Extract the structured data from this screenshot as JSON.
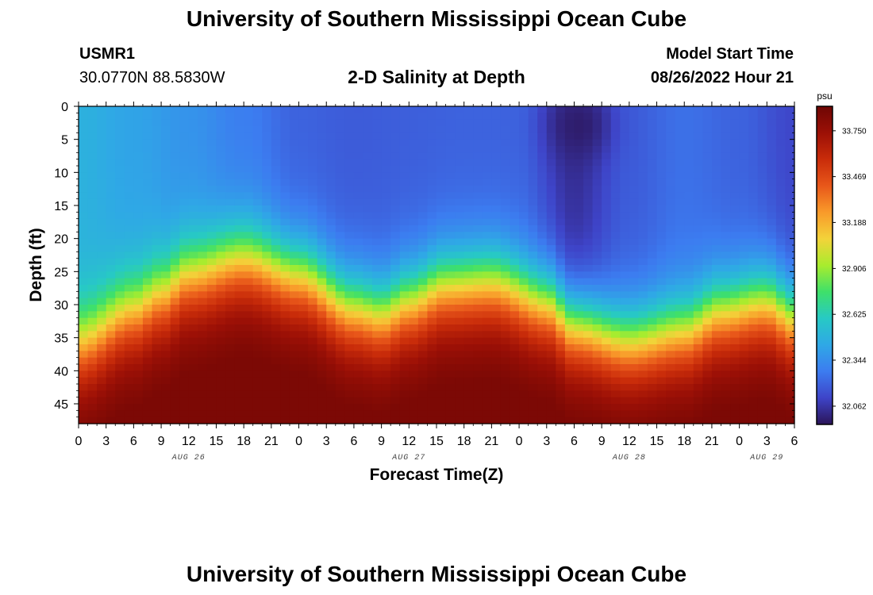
{
  "page": {
    "title": "University of Southern Mississippi Ocean Cube",
    "footer_title": "University of Southern Mississippi Ocean Cube",
    "station": {
      "name": "USMR1",
      "coords": "30.0770N  88.5830W"
    },
    "center_title": "2-D Salinity at Depth",
    "model_start": {
      "label": "Model Start Time",
      "value": "08/26/2022 Hour 21"
    }
  },
  "chart_data": {
    "type": "heatmap",
    "title": "2-D Salinity at Depth",
    "xlabel": "Forecast Time(Z)",
    "ylabel": "Depth (ft)",
    "x_ticks": [
      "0",
      "3",
      "6",
      "9",
      "12",
      "15",
      "18",
      "21",
      "0",
      "3",
      "6",
      "9",
      "12",
      "15",
      "18",
      "21",
      "0",
      "3",
      "6",
      "9",
      "12",
      "15",
      "18",
      "21",
      "0",
      "3",
      "6"
    ],
    "x_hours": [
      0,
      3,
      6,
      9,
      12,
      15,
      18,
      21,
      24,
      27,
      30,
      33,
      36,
      39,
      42,
      45,
      48,
      51,
      54,
      57,
      60,
      63,
      66,
      69,
      72,
      75,
      78
    ],
    "x_range_hours": [
      0,
      78
    ],
    "date_labels": [
      {
        "text": "AUG 26",
        "hour": 12
      },
      {
        "text": "AUG 27",
        "hour": 36
      },
      {
        "text": "AUG 28",
        "hour": 60
      },
      {
        "text": "AUG 29",
        "hour": 75
      }
    ],
    "y_ticks": [
      0,
      5,
      10,
      15,
      20,
      25,
      30,
      35,
      40,
      45
    ],
    "y_range_ft": [
      0,
      48
    ],
    "y_inverted": true,
    "colorbar": {
      "unit": "psu",
      "range": [
        31.95,
        33.9
      ],
      "ticks": [
        "33.750",
        "33.469",
        "33.188",
        "32.906",
        "32.625",
        "32.344",
        "32.062"
      ],
      "tick_values": [
        33.75,
        33.469,
        33.188,
        32.906,
        32.625,
        32.344,
        32.062
      ],
      "colors": [
        "#2b1458",
        "#3e44c8",
        "#3c7cf0",
        "#2fa8e6",
        "#27c9c5",
        "#3ee06a",
        "#a8ec2e",
        "#f3d33a",
        "#f99a2a",
        "#e8571a",
        "#c92c0a",
        "#9c1006",
        "#6e0604"
      ]
    },
    "value_model": {
      "grid_hours_step": 1,
      "grid_depth_step_ft": 1,
      "surface_salinity": {
        "hours": [
          0,
          6,
          12,
          18,
          24,
          30,
          36,
          42,
          48,
          54,
          60,
          66,
          72,
          78
        ],
        "values": [
          32.48,
          32.42,
          32.36,
          32.28,
          32.2,
          32.18,
          32.19,
          32.2,
          32.2,
          32.04,
          32.18,
          32.24,
          32.2,
          32.12
        ]
      },
      "halocline_depth_ft": {
        "hours": [
          0,
          6,
          9,
          12,
          18,
          24,
          30,
          33,
          36,
          40,
          45,
          51,
          54,
          60,
          66,
          70,
          75,
          78
        ],
        "values": [
          36,
          31,
          28.5,
          25.5,
          23,
          25.5,
          30.5,
          31.5,
          29.5,
          27,
          26.5,
          29.5,
          33,
          35.5,
          34,
          31,
          29.5,
          32
        ]
      },
      "bottom_salinity_max": 33.85,
      "low_salinity_blob": {
        "hour": 54.5,
        "depth_ft": 3,
        "min_value": 31.98
      }
    }
  }
}
